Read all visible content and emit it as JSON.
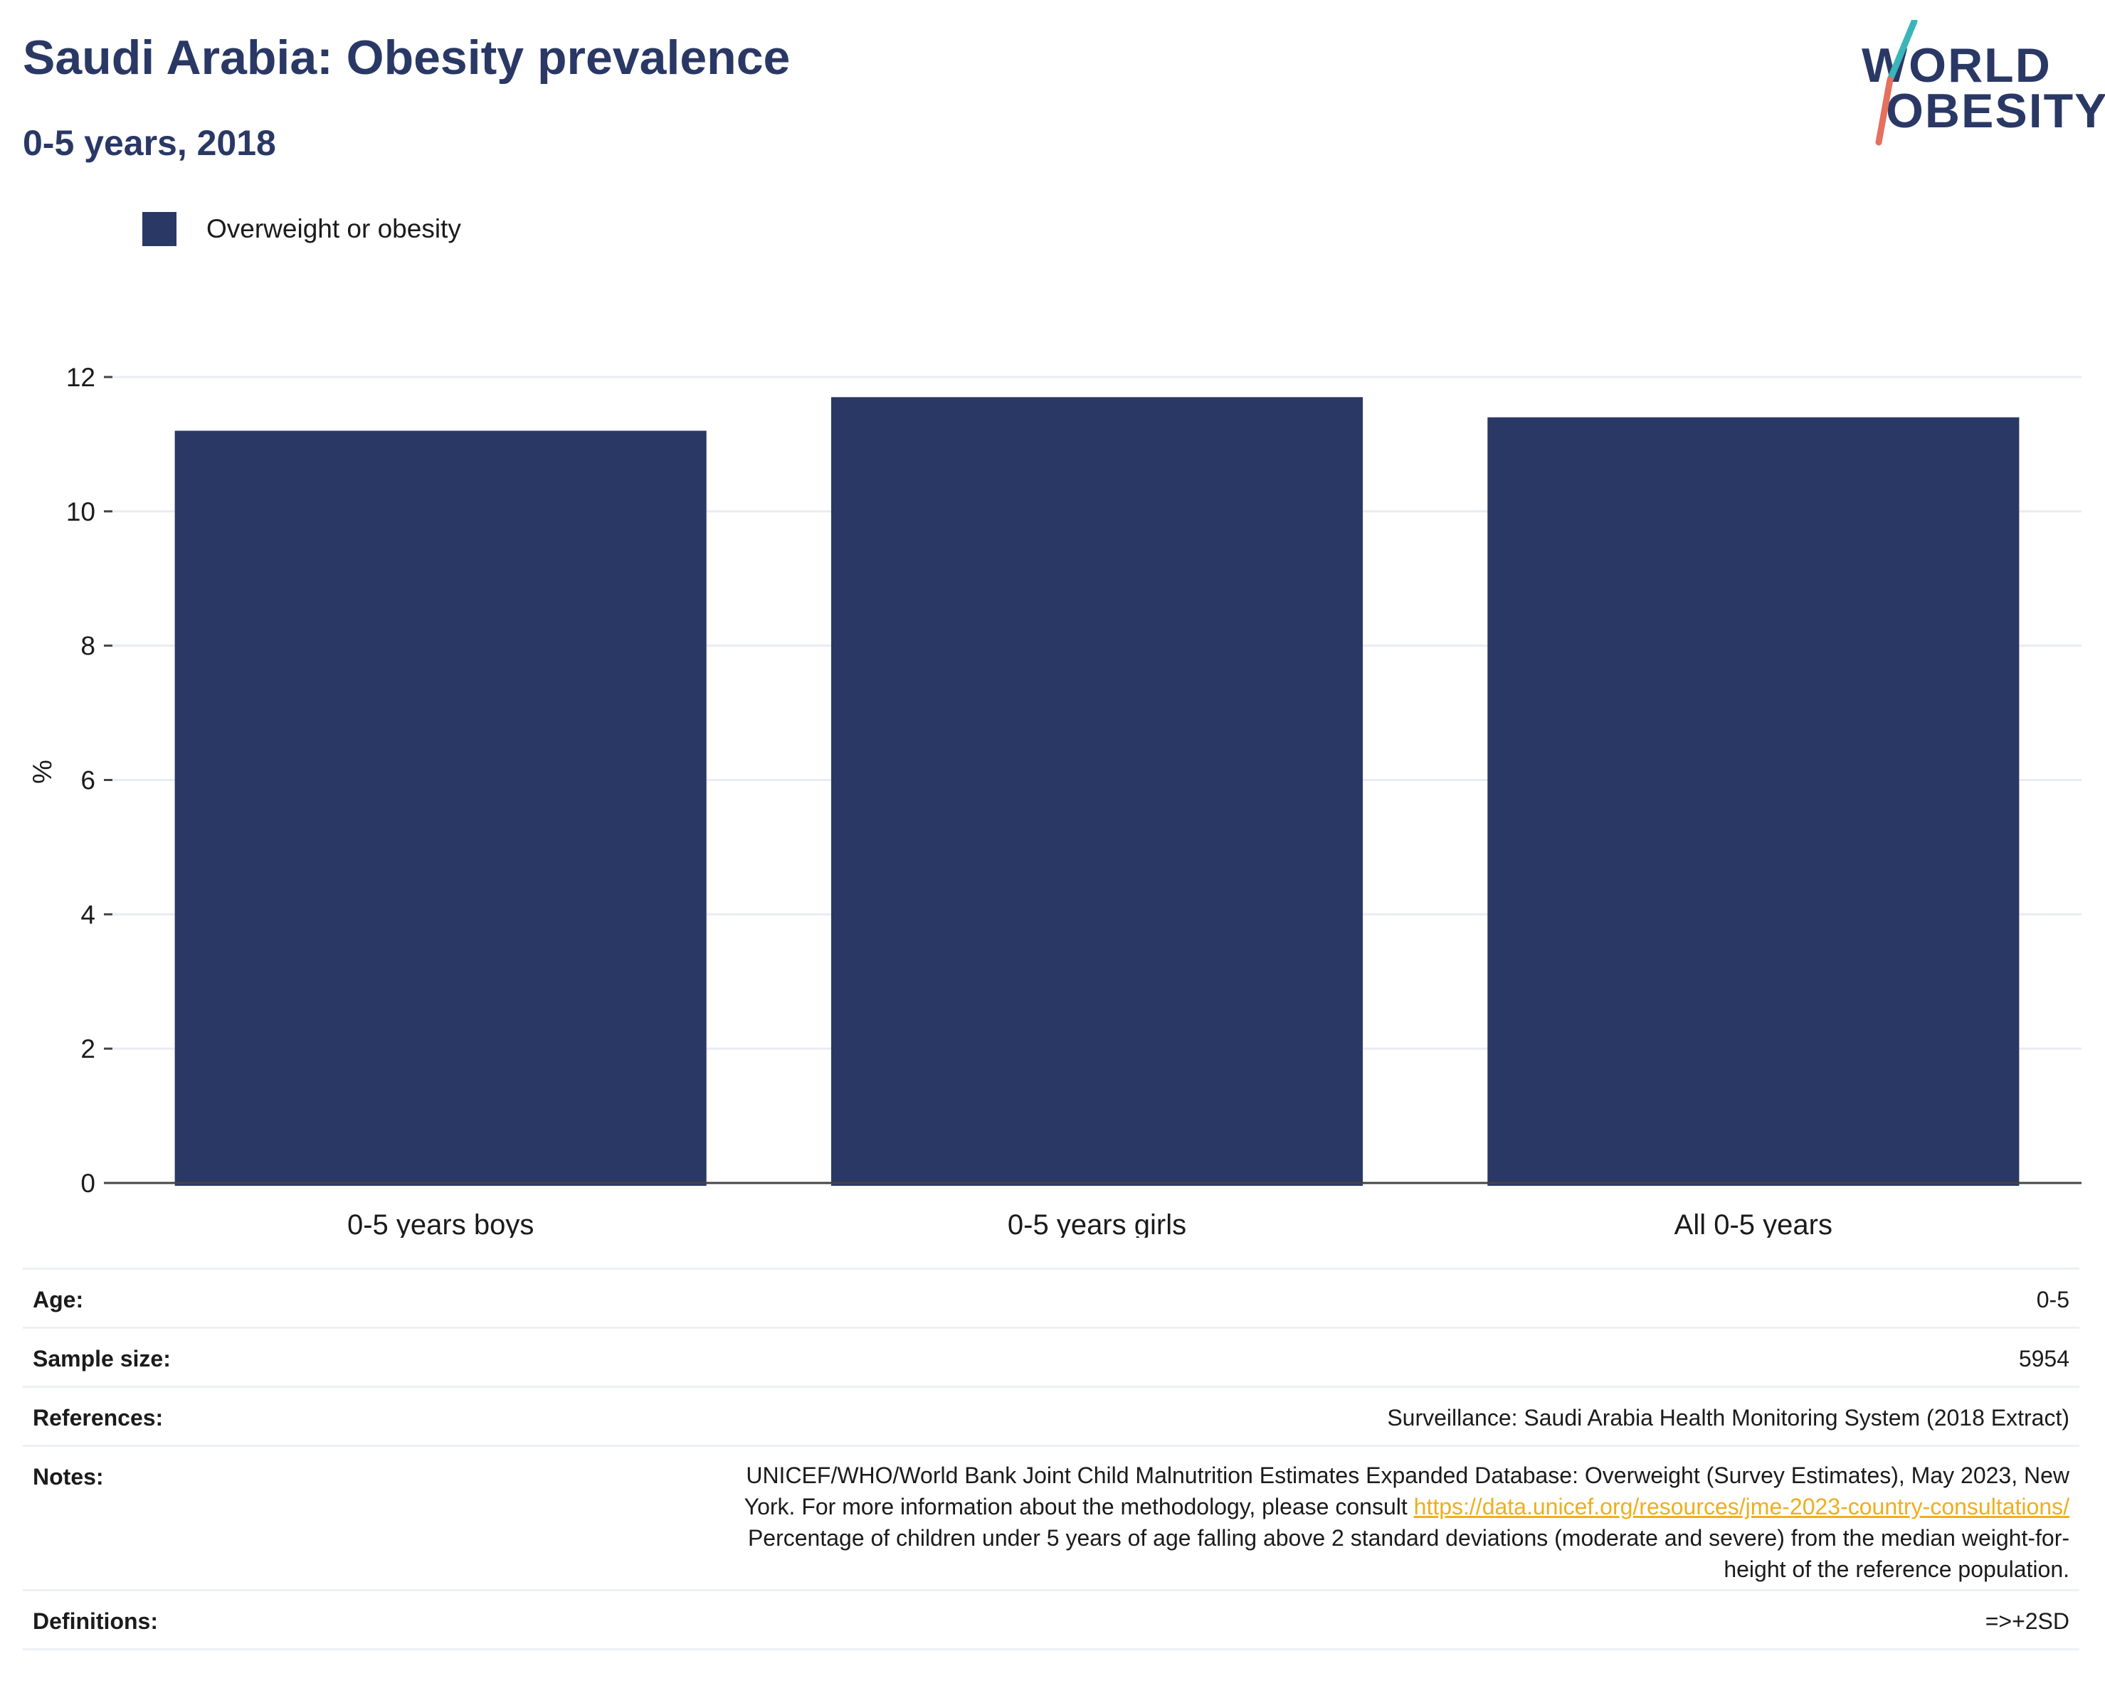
{
  "header": {
    "title": "Saudi Arabia: Obesity prevalence",
    "subtitle": "0-5 years, 2018"
  },
  "logo": {
    "line1": "WORLD",
    "line2": "OBESITY",
    "colors": {
      "text": "#2a3865",
      "slash_top": "#3ab5b8",
      "slash_bottom": "#e5705d"
    }
  },
  "legend": {
    "label": "Overweight or obesity",
    "color": "#2a3865"
  },
  "chart_data": {
    "type": "bar",
    "categories": [
      "0-5 years boys",
      "0-5 years girls",
      "All 0-5 years"
    ],
    "series": [
      {
        "name": "Overweight or obesity",
        "values": [
          11.2,
          11.7,
          11.4
        ],
        "color": "#2a3865"
      }
    ],
    "ylabel": "%",
    "ylim": [
      0,
      12
    ],
    "yticks": [
      0,
      2,
      4,
      6,
      8,
      10,
      12
    ],
    "grid": true,
    "legend_position": "top-left"
  },
  "meta": {
    "age": {
      "label": "Age:",
      "value": "0-5"
    },
    "sample": {
      "label": "Sample size:",
      "value": "5954"
    },
    "references": {
      "label": "References:",
      "value": "Surveillance: Saudi Arabia Health Monitoring System (2018 Extract)"
    },
    "notes": {
      "label": "Notes:",
      "line1": "UNICEF/WHO/World Bank Joint Child Malnutrition Estimates Expanded Database: Overweight (Survey Estimates), May 2023, New",
      "line2_prefix": "York. For more information about the methodology, please consult ",
      "link": "https://data.unicef.org/resources/jme-2023-country-consultations/",
      "line3": "Percentage of children under 5 years of age falling above 2 standard deviations (moderate and severe) from the median weight-for-",
      "line4": "height of the reference population."
    },
    "definitions": {
      "label": "Definitions:",
      "value": "=>+2SD"
    }
  }
}
